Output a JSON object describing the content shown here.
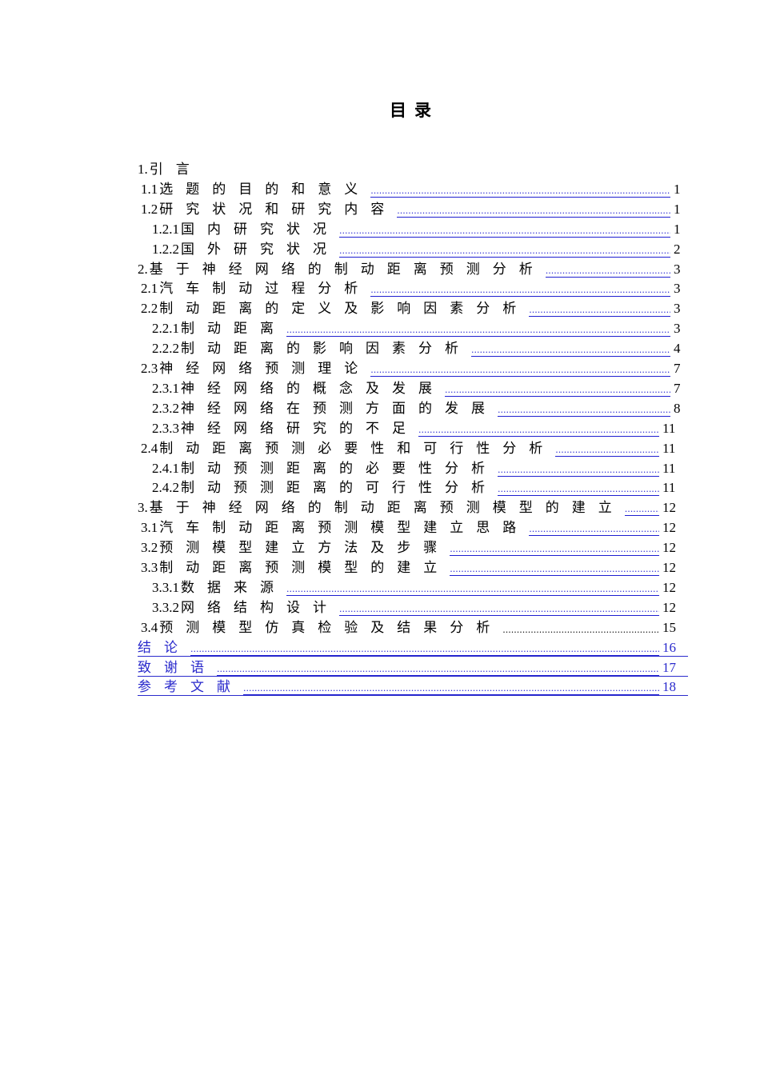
{
  "heading": "目录",
  "accent_color": "#1f1fd0",
  "toc": [
    {
      "level": 1,
      "num": "1.",
      "title": "引言",
      "page": ""
    },
    {
      "level": 2,
      "num": "1.1",
      "title": "选题的目的和意义",
      "page": "1",
      "link": true
    },
    {
      "level": 2,
      "num": "1.2",
      "title": "研究状况和研究内容",
      "page": "1",
      "link": true
    },
    {
      "level": 3,
      "num": "1.2.1 ",
      "title": "国内研究状况",
      "page": "1",
      "link": true
    },
    {
      "level": 3,
      "num": "1.2.2 ",
      "title": "国外研究状况",
      "page": "2",
      "link": true
    },
    {
      "level": 1,
      "num": "2. ",
      "title": "基于神经网络的制动距离预测分析",
      "page": "3",
      "link": true
    },
    {
      "level": 2,
      "num": "2.1",
      "title": "汽车制动过程分析",
      "page": "3",
      "link": true
    },
    {
      "level": 2,
      "num": "2.2",
      "title": "制动距离的定义及影响因素分析",
      "page": "3",
      "link": true
    },
    {
      "level": 3,
      "num": "2.2.1 ",
      "title": "制动距离",
      "page": "3",
      "link": true
    },
    {
      "level": 3,
      "num": "2.2.2 ",
      "title": "制动距离的影响因素分析",
      "page": "4",
      "link": true
    },
    {
      "level": 2,
      "num": "2.3",
      "title": "神经网络预测理论",
      "page": "7",
      "link": true
    },
    {
      "level": 3,
      "num": "2.3.1 ",
      "title": "神经网络的概念及发展",
      "page": "7",
      "link": true
    },
    {
      "level": 3,
      "num": "2.3.2 ",
      "title": "神经网络在预测方面的发展",
      "page": "8",
      "link": true
    },
    {
      "level": 3,
      "num": "2.3.3 ",
      "title": "神经网络研究的不足",
      "page": "11",
      "link": true
    },
    {
      "level": 2,
      "num": "2.4",
      "title": "制动距离预测必要性和可行性分析",
      "page": "11",
      "link": true
    },
    {
      "level": 3,
      "num": "2.4.1 ",
      "title": "制动预测距离的必要性分析",
      "page": "11",
      "link": true
    },
    {
      "level": 3,
      "num": "2.4.2 ",
      "title": "制动预测距离的可行性分析",
      "page": "11",
      "link": true
    },
    {
      "level": 1,
      "num": "3.",
      "title": "基于神经网络的制动距离预测模型的建立",
      "page": "12",
      "link": true
    },
    {
      "level": 2,
      "num": "3.1",
      "title": "汽车制动距离预测模型建立思路",
      "page": "12",
      "link": true
    },
    {
      "level": 2,
      "num": "3.2",
      "title": "预测模型建立方法及步骤",
      "page": "12",
      "link": true
    },
    {
      "level": 2,
      "num": "3.3",
      "title": "制动距离预测模型的建立",
      "page": "12",
      "link": true
    },
    {
      "level": 3,
      "num": "3.3.1 ",
      "title": "数据来源",
      "page": "12",
      "link": true
    },
    {
      "level": 3,
      "num": "3.3.2 ",
      "title": "网络结构设计",
      "page": "12",
      "link": true
    },
    {
      "level": 2,
      "num": "3.4",
      "title": "预测模型仿真检验及结果分析",
      "page": "15",
      "link": false
    },
    {
      "level": 0,
      "num": "",
      "title": "结论",
      "page": "16",
      "full": true
    },
    {
      "level": 0,
      "num": "",
      "title": "致谢语",
      "page": "17",
      "full": true
    },
    {
      "level": 0,
      "num": "",
      "title": "参考文献",
      "page": "18",
      "full": true
    }
  ]
}
